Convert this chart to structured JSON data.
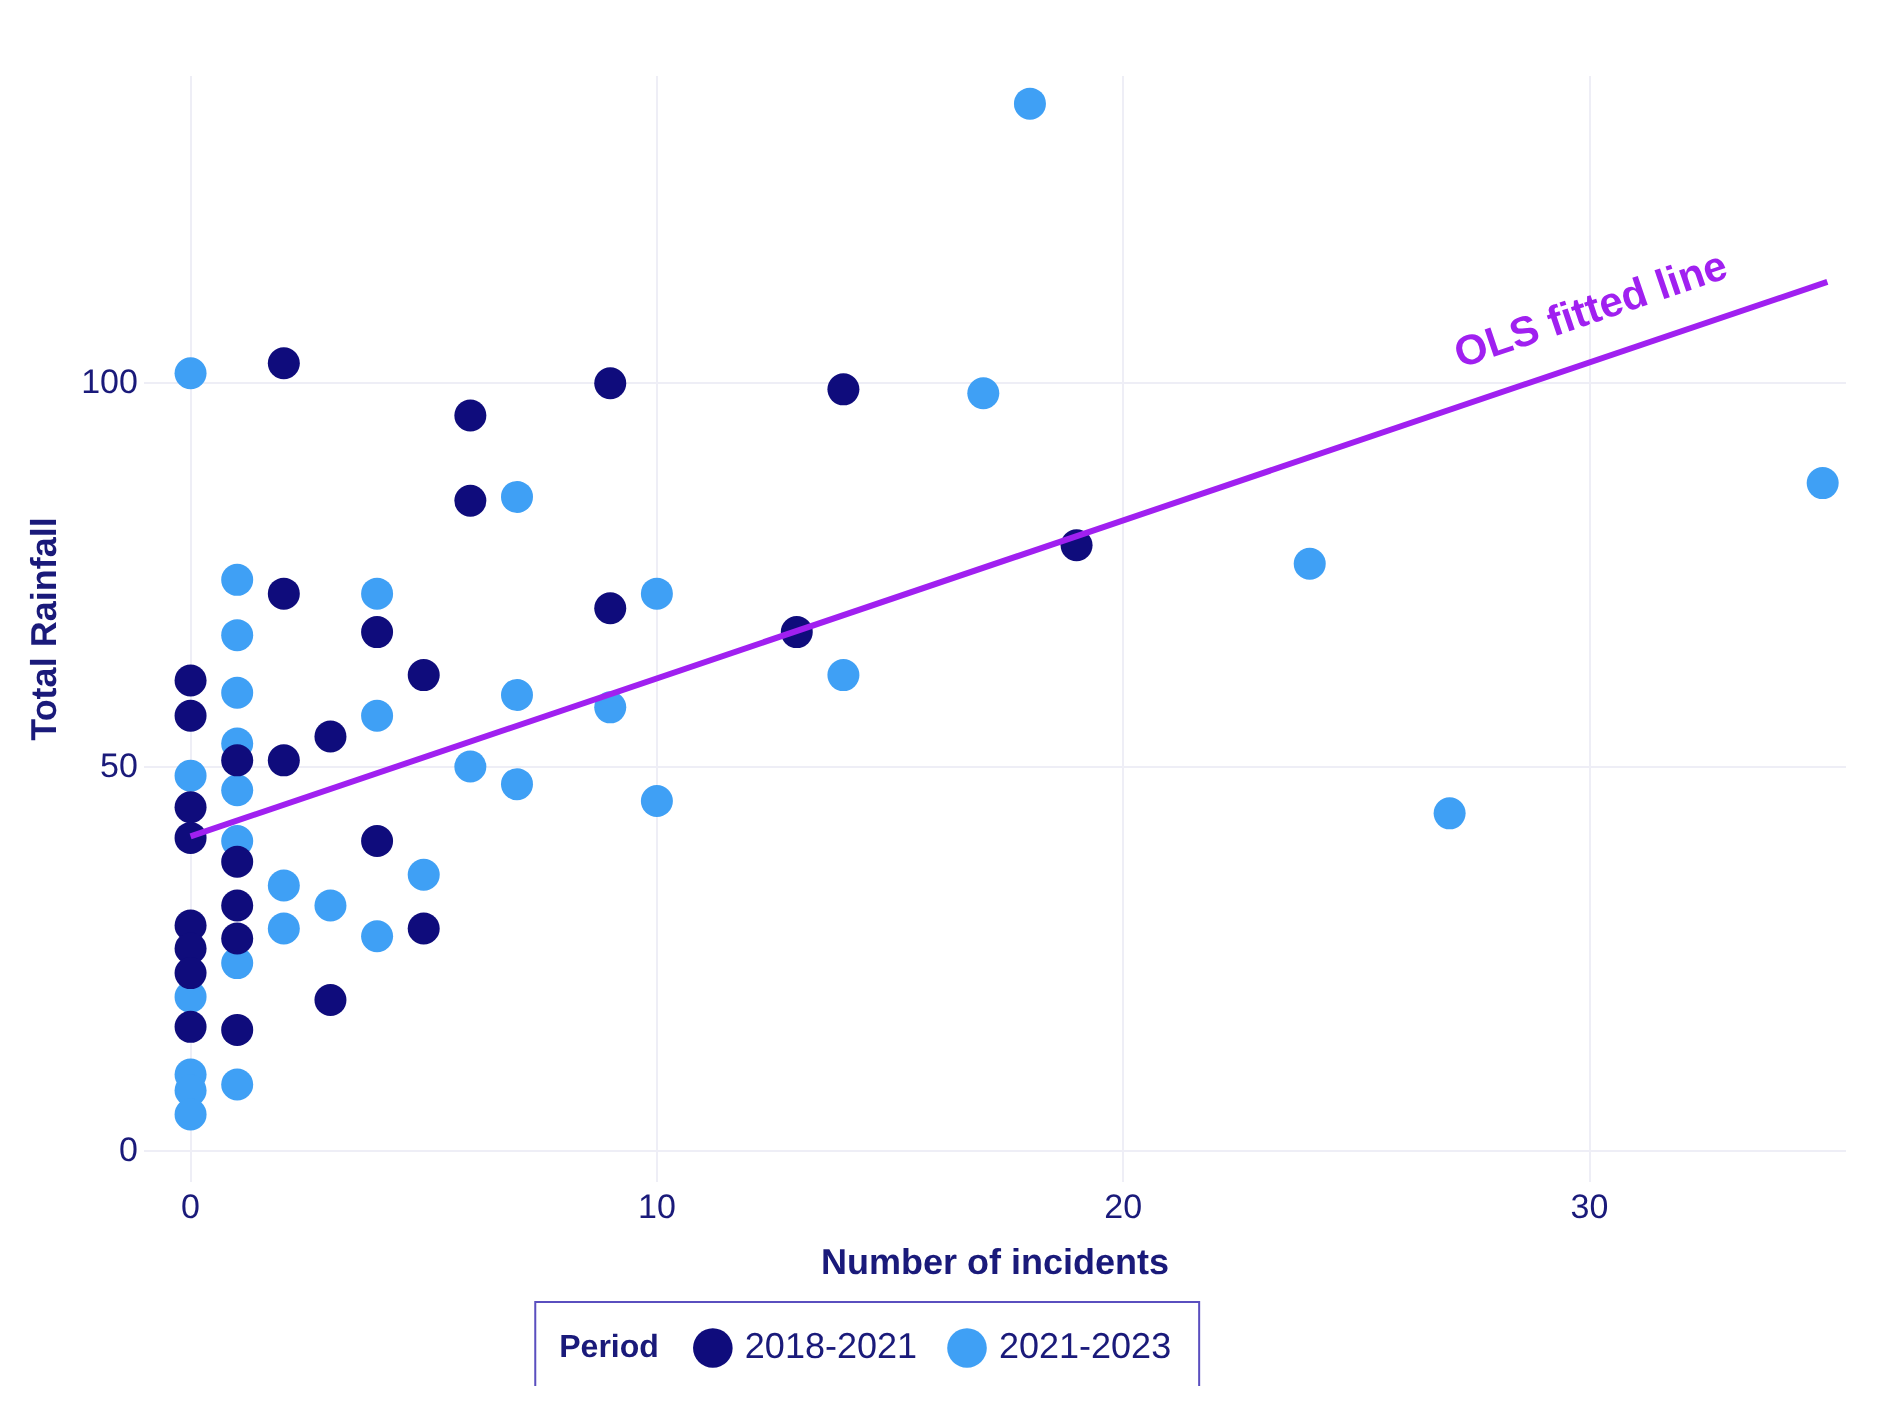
{
  "chart_data": {
    "type": "scatter",
    "xlabel": "Number of incidents",
    "ylabel": "Total Rainfall",
    "legend_title": "Period",
    "legend": "bottom",
    "grid": true,
    "marker": "circle",
    "xlim": [
      -1,
      35.5
    ],
    "ylim": [
      -4,
      140
    ],
    "xticks": [
      0,
      10,
      20,
      30
    ],
    "yticks": [
      0,
      50,
      100
    ],
    "annotations": [
      "OLS fitted line"
    ],
    "series": [
      {
        "name": "2018-2021",
        "color": "#0f0c7c",
        "x": [
          0,
          0,
          0,
          0,
          0,
          0,
          0,
          0,
          1,
          1,
          1,
          1,
          1,
          2,
          2,
          2,
          3,
          3,
          4,
          4,
          5,
          5,
          6,
          6,
          9,
          9,
          13,
          14,
          19
        ],
        "values": [
          61.3,
          56.7,
          44.8,
          40.8,
          29.4,
          26.4,
          23.2,
          16.2,
          50.9,
          37.7,
          32,
          27.7,
          15.8,
          102.6,
          72.6,
          50.9,
          54,
          19.7,
          67.6,
          40.4,
          62,
          29,
          95.8,
          84.7,
          100,
          70.7,
          67.6,
          99.2,
          78.9
        ]
      },
      {
        "name": "2021-2023",
        "color": "#3fa0f5",
        "x": [
          0,
          0,
          0,
          0,
          0,
          0,
          1,
          1,
          1,
          1,
          1,
          1,
          1,
          1,
          2,
          2,
          3,
          4,
          4,
          4,
          5,
          6,
          7,
          7,
          7,
          9,
          10,
          10,
          14,
          17,
          18,
          24,
          27,
          35
        ],
        "values": [
          101.3,
          48.9,
          20.1,
          10,
          7.9,
          4.8,
          74.4,
          67.2,
          59.7,
          53.1,
          47,
          40.4,
          24.5,
          8.7,
          34.6,
          29,
          32,
          72.6,
          56.7,
          28,
          36,
          50.1,
          85.2,
          59.4,
          47.8,
          57.8,
          72.6,
          45.6,
          62,
          98.7,
          136.4,
          76.5,
          44,
          87
        ]
      },
      {
        "type": "line",
        "color": "#a020f0",
        "x": [
          0,
          35.1
        ],
        "values": [
          41,
          113.2
        ],
        "marker": "none"
      }
    ]
  }
}
